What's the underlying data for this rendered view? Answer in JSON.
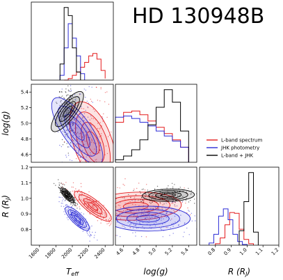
{
  "title": "HD 130948B",
  "chart_data": {
    "type": "corner",
    "title": "HD 130948B",
    "parameters": [
      {
        "key": "teff",
        "label_main": "T",
        "label_sub": "eff",
        "range": [
          1500,
          2500
        ],
        "ticks": [
          1600,
          1800,
          2000,
          2200,
          2400
        ]
      },
      {
        "key": "logg",
        "label": "log(g)",
        "range": [
          4.5,
          5.5
        ],
        "ticks": [
          4.6,
          4.8,
          5.0,
          5.2,
          5.4
        ]
      },
      {
        "key": "radius",
        "label_main": "R (R",
        "label_sub": "J",
        "label_end": ")",
        "range": [
          0.7,
          1.2
        ],
        "ticks": [
          0.8,
          0.9,
          1.0,
          1.1,
          1.2
        ]
      }
    ],
    "legend_position": "right-middle",
    "series": [
      {
        "name": "L-band spectrum",
        "color": "#e41a1c",
        "hist_teff": {
          "edges": [
            1900,
            1950,
            2000,
            2050,
            2100,
            2150,
            2200,
            2250,
            2300,
            2350,
            2400
          ],
          "counts": [
            0,
            2,
            6,
            10,
            16,
            22,
            30,
            33,
            26,
            12,
            2
          ]
        },
        "hist_logg": {
          "edges": [
            4.5,
            4.6,
            4.7,
            4.8,
            4.9,
            5.0,
            5.1,
            5.2,
            5.3,
            5.4
          ],
          "counts": [
            32,
            40,
            41,
            38,
            33,
            28,
            23,
            18,
            12
          ]
        },
        "hist_radius": {
          "edges": [
            0.8,
            0.83,
            0.86,
            0.89,
            0.92,
            0.95,
            0.98,
            1.01,
            1.04
          ],
          "counts": [
            2,
            10,
            28,
            45,
            44,
            22,
            8,
            2
          ]
        },
        "center": {
          "teff": 2250,
          "logg": 4.75,
          "radius": 0.95
        }
      },
      {
        "name": "JHK photometry",
        "color": "#2b2bd6",
        "hist_teff": {
          "edges": [
            1850,
            1900,
            1950,
            2000,
            2050,
            2100,
            2150
          ],
          "counts": [
            6,
            40,
            70,
            52,
            30,
            8
          ]
        },
        "hist_logg": {
          "edges": [
            4.5,
            4.6,
            4.7,
            4.8,
            4.9,
            5.0,
            5.1,
            5.2,
            5.3,
            5.4
          ],
          "counts": [
            36,
            37,
            35,
            32,
            29,
            25,
            21,
            17,
            12
          ]
        },
        "hist_radius": {
          "edges": [
            0.76,
            0.79,
            0.82,
            0.85,
            0.88,
            0.91,
            0.94,
            0.97,
            1.0
          ],
          "counts": [
            3,
            15,
            40,
            50,
            35,
            15,
            5,
            1
          ]
        },
        "center": {
          "teff": 2060,
          "logg": 4.9,
          "radius": 0.87
        }
      },
      {
        "name": "L-band + JHK",
        "color": "#000000",
        "hist_teff": {
          "edges": [
            1850,
            1900,
            1950,
            2000,
            2050,
            2100
          ],
          "counts": [
            20,
            90,
            80,
            40,
            10
          ]
        },
        "hist_logg": {
          "edges": [
            4.5,
            4.6,
            4.7,
            4.8,
            4.9,
            5.0,
            5.1,
            5.2,
            5.3,
            5.4
          ],
          "counts": [
            2,
            5,
            10,
            18,
            30,
            44,
            58,
            48,
            25
          ]
        },
        "hist_radius": {
          "edges": [
            0.95,
            0.98,
            1.01,
            1.04,
            1.07
          ],
          "counts": [
            20,
            60,
            100,
            18
          ]
        },
        "center": {
          "teff": 1940,
          "logg": 5.15,
          "radius": 1.02
        }
      }
    ]
  }
}
